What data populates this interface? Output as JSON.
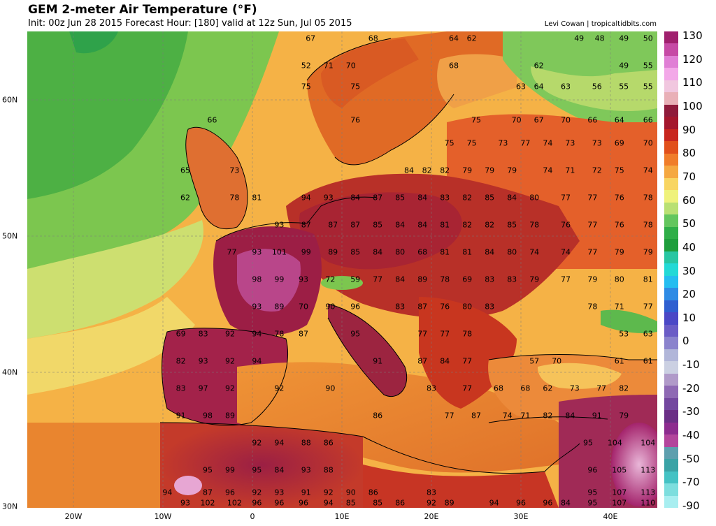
{
  "header": {
    "title": "GEM 2-meter Air Temperature (°F)",
    "subtitle": "Init: 00z Jun 28 2015   Forecast Hour: [180]   valid at 12z Sun, Jul 05 2015",
    "credit": "Levi Cowan | tropicaltidbits.com"
  },
  "axes": {
    "lat_labels": [
      "60N",
      "50N",
      "40N",
      "30N"
    ],
    "lon_labels": [
      "20W",
      "10W",
      "0",
      "10E",
      "20E",
      "30E",
      "40E"
    ]
  },
  "colorbar": {
    "labels": [
      "130",
      "120",
      "110",
      "100",
      "90",
      "80",
      "70",
      "60",
      "50",
      "40",
      "30",
      "20",
      "10",
      "0",
      "-10",
      "-20",
      "-30",
      "-40",
      "-50",
      "-70",
      "-90"
    ],
    "colors": [
      "#a0206e",
      "#c64aa5",
      "#e07fd5",
      "#f3a8e8",
      "#f1c7df",
      "#e9b0b7",
      "#8f1b3b",
      "#a4172d",
      "#c8261e",
      "#e1501b",
      "#f07d2a",
      "#f5a841",
      "#f8d562",
      "#eff27b",
      "#b9e073",
      "#63c65e",
      "#2fae48",
      "#1e9e3c",
      "#28c6a2",
      "#23d9d6",
      "#25bdf0",
      "#2e8be5",
      "#2f5fd0",
      "#4b48c6",
      "#6a5cc6",
      "#8a83cd",
      "#b1b6d9",
      "#cbd0e2",
      "#b09ac9",
      "#8e69b4",
      "#73479f",
      "#6b2f86",
      "#8d2c8f",
      "#b3459c",
      "#5d9fae",
      "#3aa3a6",
      "#44c2c4",
      "#7ddede",
      "#a8eef0"
    ]
  },
  "map_values": [
    {
      "v": "67",
      "lon": 6.5,
      "lat": 64.5
    },
    {
      "v": "68",
      "lon": 13.5,
      "lat": 64.5
    },
    {
      "v": "64",
      "lon": 22.5,
      "lat": 64.5
    },
    {
      "v": "62",
      "lon": 24.5,
      "lat": 64.5
    },
    {
      "v": "49",
      "lon": 36.5,
      "lat": 64.5
    },
    {
      "v": "48",
      "lon": 38.8,
      "lat": 64.5
    },
    {
      "v": "49",
      "lon": 41.5,
      "lat": 64.5
    },
    {
      "v": "50",
      "lon": 44.2,
      "lat": 64.5
    },
    {
      "v": "52",
      "lon": 6,
      "lat": 62.5
    },
    {
      "v": "71",
      "lon": 8.5,
      "lat": 62.5
    },
    {
      "v": "70",
      "lon": 11,
      "lat": 62.5
    },
    {
      "v": "68",
      "lon": 22.5,
      "lat": 62.5
    },
    {
      "v": "62",
      "lon": 32,
      "lat": 62.5
    },
    {
      "v": "49",
      "lon": 41.5,
      "lat": 62.5
    },
    {
      "v": "55",
      "lon": 44.2,
      "lat": 62.5
    },
    {
      "v": "75",
      "lon": 6,
      "lat": 61
    },
    {
      "v": "75",
      "lon": 11.5,
      "lat": 61
    },
    {
      "v": "63",
      "lon": 30,
      "lat": 61
    },
    {
      "v": "64",
      "lon": 32,
      "lat": 61
    },
    {
      "v": "63",
      "lon": 35,
      "lat": 61
    },
    {
      "v": "56",
      "lon": 38.5,
      "lat": 61
    },
    {
      "v": "55",
      "lon": 41.5,
      "lat": 61
    },
    {
      "v": "55",
      "lon": 44.2,
      "lat": 61
    },
    {
      "v": "66",
      "lon": -4.5,
      "lat": 58.5
    },
    {
      "v": "76",
      "lon": 11.5,
      "lat": 58.5
    },
    {
      "v": "75",
      "lon": 25,
      "lat": 58.5
    },
    {
      "v": "70",
      "lon": 29.5,
      "lat": 58.5
    },
    {
      "v": "67",
      "lon": 32,
      "lat": 58.5
    },
    {
      "v": "70",
      "lon": 35,
      "lat": 58.5
    },
    {
      "v": "66",
      "lon": 38,
      "lat": 58.5
    },
    {
      "v": "64",
      "lon": 41,
      "lat": 58.5
    },
    {
      "v": "66",
      "lon": 44.2,
      "lat": 58.5
    },
    {
      "v": "75",
      "lon": 22,
      "lat": 56.8
    },
    {
      "v": "75",
      "lon": 24.5,
      "lat": 56.8
    },
    {
      "v": "73",
      "lon": 28,
      "lat": 56.8
    },
    {
      "v": "77",
      "lon": 30.5,
      "lat": 56.8
    },
    {
      "v": "74",
      "lon": 33,
      "lat": 56.8
    },
    {
      "v": "73",
      "lon": 35.5,
      "lat": 56.8
    },
    {
      "v": "73",
      "lon": 38.5,
      "lat": 56.8
    },
    {
      "v": "69",
      "lon": 41,
      "lat": 56.8
    },
    {
      "v": "70",
      "lon": 44.2,
      "lat": 56.8
    },
    {
      "v": "65",
      "lon": -7.5,
      "lat": 54.8
    },
    {
      "v": "73",
      "lon": -2,
      "lat": 54.8
    },
    {
      "v": "84",
      "lon": 17.5,
      "lat": 54.8
    },
    {
      "v": "82",
      "lon": 19.5,
      "lat": 54.8
    },
    {
      "v": "82",
      "lon": 21.5,
      "lat": 54.8
    },
    {
      "v": "79",
      "lon": 24,
      "lat": 54.8
    },
    {
      "v": "79",
      "lon": 26.5,
      "lat": 54.8
    },
    {
      "v": "79",
      "lon": 29,
      "lat": 54.8
    },
    {
      "v": "74",
      "lon": 33,
      "lat": 54.8
    },
    {
      "v": "71",
      "lon": 35.5,
      "lat": 54.8
    },
    {
      "v": "72",
      "lon": 38.5,
      "lat": 54.8
    },
    {
      "v": "75",
      "lon": 41,
      "lat": 54.8
    },
    {
      "v": "74",
      "lon": 44.2,
      "lat": 54.8
    },
    {
      "v": "62",
      "lon": -7.5,
      "lat": 52.8
    },
    {
      "v": "78",
      "lon": -2,
      "lat": 52.8
    },
    {
      "v": "81",
      "lon": 0.5,
      "lat": 52.8
    },
    {
      "v": "94",
      "lon": 6,
      "lat": 52.8
    },
    {
      "v": "93",
      "lon": 8.5,
      "lat": 52.8
    },
    {
      "v": "84",
      "lon": 11.5,
      "lat": 52.8
    },
    {
      "v": "87",
      "lon": 14,
      "lat": 52.8
    },
    {
      "v": "85",
      "lon": 16.5,
      "lat": 52.8
    },
    {
      "v": "84",
      "lon": 19,
      "lat": 52.8
    },
    {
      "v": "83",
      "lon": 21.5,
      "lat": 52.8
    },
    {
      "v": "82",
      "lon": 24,
      "lat": 52.8
    },
    {
      "v": "85",
      "lon": 26.5,
      "lat": 52.8
    },
    {
      "v": "84",
      "lon": 29,
      "lat": 52.8
    },
    {
      "v": "80",
      "lon": 31.5,
      "lat": 52.8
    },
    {
      "v": "77",
      "lon": 35,
      "lat": 52.8
    },
    {
      "v": "77",
      "lon": 38,
      "lat": 52.8
    },
    {
      "v": "76",
      "lon": 41,
      "lat": 52.8
    },
    {
      "v": "78",
      "lon": 44.2,
      "lat": 52.8
    },
    {
      "v": "93",
      "lon": 3,
      "lat": 50.8
    },
    {
      "v": "87",
      "lon": 6,
      "lat": 50.8
    },
    {
      "v": "87",
      "lon": 9,
      "lat": 50.8
    },
    {
      "v": "87",
      "lon": 11.5,
      "lat": 50.8
    },
    {
      "v": "85",
      "lon": 14,
      "lat": 50.8
    },
    {
      "v": "84",
      "lon": 16.5,
      "lat": 50.8
    },
    {
      "v": "84",
      "lon": 19,
      "lat": 50.8
    },
    {
      "v": "81",
      "lon": 21.5,
      "lat": 50.8
    },
    {
      "v": "82",
      "lon": 24,
      "lat": 50.8
    },
    {
      "v": "82",
      "lon": 26.5,
      "lat": 50.8
    },
    {
      "v": "85",
      "lon": 29,
      "lat": 50.8
    },
    {
      "v": "78",
      "lon": 31.5,
      "lat": 50.8
    },
    {
      "v": "76",
      "lon": 35,
      "lat": 50.8
    },
    {
      "v": "77",
      "lon": 38,
      "lat": 50.8
    },
    {
      "v": "76",
      "lon": 41,
      "lat": 50.8
    },
    {
      "v": "78",
      "lon": 44.2,
      "lat": 50.8
    },
    {
      "v": "77",
      "lon": -2.3,
      "lat": 48.8
    },
    {
      "v": "93",
      "lon": 0.5,
      "lat": 48.8
    },
    {
      "v": "101",
      "lon": 3,
      "lat": 48.8
    },
    {
      "v": "99",
      "lon": 6,
      "lat": 48.8
    },
    {
      "v": "89",
      "lon": 9,
      "lat": 48.8
    },
    {
      "v": "85",
      "lon": 11.5,
      "lat": 48.8
    },
    {
      "v": "84",
      "lon": 14,
      "lat": 48.8
    },
    {
      "v": "80",
      "lon": 16.5,
      "lat": 48.8
    },
    {
      "v": "68",
      "lon": 19,
      "lat": 48.8
    },
    {
      "v": "81",
      "lon": 21.5,
      "lat": 48.8
    },
    {
      "v": "81",
      "lon": 24,
      "lat": 48.8
    },
    {
      "v": "84",
      "lon": 26.5,
      "lat": 48.8
    },
    {
      "v": "80",
      "lon": 29,
      "lat": 48.8
    },
    {
      "v": "74",
      "lon": 31.5,
      "lat": 48.8
    },
    {
      "v": "74",
      "lon": 35,
      "lat": 48.8
    },
    {
      "v": "77",
      "lon": 38,
      "lat": 48.8
    },
    {
      "v": "79",
      "lon": 41,
      "lat": 48.8
    },
    {
      "v": "79",
      "lon": 44.2,
      "lat": 48.8
    },
    {
      "v": "98",
      "lon": 0.5,
      "lat": 46.8
    },
    {
      "v": "99",
      "lon": 3,
      "lat": 46.8
    },
    {
      "v": "93",
      "lon": 5.7,
      "lat": 46.8
    },
    {
      "v": "72",
      "lon": 8.7,
      "lat": 46.8
    },
    {
      "v": "59",
      "lon": 11.5,
      "lat": 46.8
    },
    {
      "v": "77",
      "lon": 14,
      "lat": 46.8
    },
    {
      "v": "84",
      "lon": 16.5,
      "lat": 46.8
    },
    {
      "v": "89",
      "lon": 19,
      "lat": 46.8
    },
    {
      "v": "78",
      "lon": 21.5,
      "lat": 46.8
    },
    {
      "v": "69",
      "lon": 24,
      "lat": 46.8
    },
    {
      "v": "83",
      "lon": 26.5,
      "lat": 46.8
    },
    {
      "v": "83",
      "lon": 29,
      "lat": 46.8
    },
    {
      "v": "79",
      "lon": 31.5,
      "lat": 46.8
    },
    {
      "v": "77",
      "lon": 35,
      "lat": 46.8
    },
    {
      "v": "79",
      "lon": 38,
      "lat": 46.8
    },
    {
      "v": "80",
      "lon": 41,
      "lat": 46.8
    },
    {
      "v": "81",
      "lon": 44.2,
      "lat": 46.8
    },
    {
      "v": "93",
      "lon": 0.5,
      "lat": 44.8
    },
    {
      "v": "89",
      "lon": 3,
      "lat": 44.8
    },
    {
      "v": "70",
      "lon": 5.7,
      "lat": 44.8
    },
    {
      "v": "90",
      "lon": 8.7,
      "lat": 44.8
    },
    {
      "v": "96",
      "lon": 11.5,
      "lat": 44.8
    },
    {
      "v": "83",
      "lon": 16.5,
      "lat": 44.8
    },
    {
      "v": "87",
      "lon": 19,
      "lat": 44.8
    },
    {
      "v": "76",
      "lon": 21.5,
      "lat": 44.8
    },
    {
      "v": "80",
      "lon": 24,
      "lat": 44.8
    },
    {
      "v": "83",
      "lon": 26.5,
      "lat": 44.8
    },
    {
      "v": "78",
      "lon": 38,
      "lat": 44.8
    },
    {
      "v": "71",
      "lon": 41,
      "lat": 44.8
    },
    {
      "v": "77",
      "lon": 44.2,
      "lat": 44.8
    },
    {
      "v": "69",
      "lon": -8,
      "lat": 42.8
    },
    {
      "v": "83",
      "lon": -5.5,
      "lat": 42.8
    },
    {
      "v": "92",
      "lon": -2.5,
      "lat": 42.8
    },
    {
      "v": "94",
      "lon": 0.5,
      "lat": 42.8
    },
    {
      "v": "78",
      "lon": 3,
      "lat": 42.8
    },
    {
      "v": "87",
      "lon": 5.7,
      "lat": 42.8
    },
    {
      "v": "95",
      "lon": 11.5,
      "lat": 42.8
    },
    {
      "v": "77",
      "lon": 19,
      "lat": 42.8
    },
    {
      "v": "77",
      "lon": 21.5,
      "lat": 42.8
    },
    {
      "v": "78",
      "lon": 24,
      "lat": 42.8
    },
    {
      "v": "53",
      "lon": 41.5,
      "lat": 42.8
    },
    {
      "v": "63",
      "lon": 44.2,
      "lat": 42.8
    },
    {
      "v": "82",
      "lon": -8,
      "lat": 40.8
    },
    {
      "v": "93",
      "lon": -5.5,
      "lat": 40.8
    },
    {
      "v": "92",
      "lon": -2.5,
      "lat": 40.8
    },
    {
      "v": "94",
      "lon": 0.5,
      "lat": 40.8
    },
    {
      "v": "91",
      "lon": 14,
      "lat": 40.8
    },
    {
      "v": "87",
      "lon": 19,
      "lat": 40.8
    },
    {
      "v": "84",
      "lon": 21.5,
      "lat": 40.8
    },
    {
      "v": "77",
      "lon": 24,
      "lat": 40.8
    },
    {
      "v": "57",
      "lon": 31.5,
      "lat": 40.8
    },
    {
      "v": "70",
      "lon": 34,
      "lat": 40.8
    },
    {
      "v": "61",
      "lon": 41,
      "lat": 40.8
    },
    {
      "v": "61",
      "lon": 44.2,
      "lat": 40.8
    },
    {
      "v": "83",
      "lon": -8,
      "lat": 38.8
    },
    {
      "v": "97",
      "lon": -5.5,
      "lat": 38.8
    },
    {
      "v": "92",
      "lon": -2.5,
      "lat": 38.8
    },
    {
      "v": "92",
      "lon": 3,
      "lat": 38.8
    },
    {
      "v": "90",
      "lon": 8.7,
      "lat": 38.8
    },
    {
      "v": "83",
      "lon": 20,
      "lat": 38.8
    },
    {
      "v": "77",
      "lon": 24,
      "lat": 38.8
    },
    {
      "v": "68",
      "lon": 27.5,
      "lat": 38.8
    },
    {
      "v": "68",
      "lon": 30.5,
      "lat": 38.8
    },
    {
      "v": "62",
      "lon": 33,
      "lat": 38.8
    },
    {
      "v": "73",
      "lon": 36,
      "lat": 38.8
    },
    {
      "v": "77",
      "lon": 39,
      "lat": 38.8
    },
    {
      "v": "82",
      "lon": 41.5,
      "lat": 38.8
    },
    {
      "v": "91",
      "lon": -8,
      "lat": 36.8
    },
    {
      "v": "98",
      "lon": -5,
      "lat": 36.8
    },
    {
      "v": "89",
      "lon": -2.5,
      "lat": 36.8
    },
    {
      "v": "86",
      "lon": 14,
      "lat": 36.8
    },
    {
      "v": "77",
      "lon": 22,
      "lat": 36.8
    },
    {
      "v": "87",
      "lon": 25,
      "lat": 36.8
    },
    {
      "v": "74",
      "lon": 28.5,
      "lat": 36.8
    },
    {
      "v": "71",
      "lon": 30.5,
      "lat": 36.8
    },
    {
      "v": "82",
      "lon": 33,
      "lat": 36.8
    },
    {
      "v": "84",
      "lon": 35.5,
      "lat": 36.8
    },
    {
      "v": "91",
      "lon": 38.5,
      "lat": 36.8
    },
    {
      "v": "79",
      "lon": 41.5,
      "lat": 36.8
    },
    {
      "v": "92",
      "lon": 0.5,
      "lat": 34.8
    },
    {
      "v": "94",
      "lon": 3,
      "lat": 34.8
    },
    {
      "v": "88",
      "lon": 6,
      "lat": 34.8
    },
    {
      "v": "86",
      "lon": 8.5,
      "lat": 34.8
    },
    {
      "v": "95",
      "lon": 37.5,
      "lat": 34.8
    },
    {
      "v": "104",
      "lon": 40.5,
      "lat": 34.8
    },
    {
      "v": "104",
      "lon": 44.2,
      "lat": 34.8
    },
    {
      "v": "95",
      "lon": -5,
      "lat": 32.8
    },
    {
      "v": "99",
      "lon": -2.5,
      "lat": 32.8
    },
    {
      "v": "95",
      "lon": 0.5,
      "lat": 32.8
    },
    {
      "v": "84",
      "lon": 3,
      "lat": 32.8
    },
    {
      "v": "93",
      "lon": 6,
      "lat": 32.8
    },
    {
      "v": "88",
      "lon": 8.5,
      "lat": 32.8
    },
    {
      "v": "96",
      "lon": 38,
      "lat": 32.8
    },
    {
      "v": "105",
      "lon": 41,
      "lat": 32.8
    },
    {
      "v": "113",
      "lon": 44.2,
      "lat": 32.8
    },
    {
      "v": "94",
      "lon": -9.5,
      "lat": 31.2
    },
    {
      "v": "87",
      "lon": -5,
      "lat": 31.2
    },
    {
      "v": "96",
      "lon": -2.5,
      "lat": 31.2
    },
    {
      "v": "92",
      "lon": 0.5,
      "lat": 31.2
    },
    {
      "v": "93",
      "lon": 3,
      "lat": 31.2
    },
    {
      "v": "91",
      "lon": 6,
      "lat": 31.2
    },
    {
      "v": "92",
      "lon": 8.5,
      "lat": 31.2
    },
    {
      "v": "90",
      "lon": 11,
      "lat": 31.2
    },
    {
      "v": "86",
      "lon": 13.5,
      "lat": 31.2
    },
    {
      "v": "83",
      "lon": 20,
      "lat": 31.2
    },
    {
      "v": "95",
      "lon": 38,
      "lat": 31.2
    },
    {
      "v": "107",
      "lon": 41,
      "lat": 31.2
    },
    {
      "v": "113",
      "lon": 44.2,
      "lat": 31.2
    },
    {
      "v": "93",
      "lon": -7.5,
      "lat": 30.4
    },
    {
      "v": "102",
      "lon": -5,
      "lat": 30.4
    },
    {
      "v": "102",
      "lon": -2,
      "lat": 30.4
    },
    {
      "v": "96",
      "lon": 0.5,
      "lat": 30.4
    },
    {
      "v": "96",
      "lon": 3,
      "lat": 30.4
    },
    {
      "v": "96",
      "lon": 5.7,
      "lat": 30.4
    },
    {
      "v": "94",
      "lon": 8.5,
      "lat": 30.4
    },
    {
      "v": "85",
      "lon": 11,
      "lat": 30.4
    },
    {
      "v": "85",
      "lon": 14,
      "lat": 30.4
    },
    {
      "v": "86",
      "lon": 16.5,
      "lat": 30.4
    },
    {
      "v": "92",
      "lon": 20,
      "lat": 30.4
    },
    {
      "v": "89",
      "lon": 22,
      "lat": 30.4
    },
    {
      "v": "94",
      "lon": 27,
      "lat": 30.4
    },
    {
      "v": "96",
      "lon": 30,
      "lat": 30.4
    },
    {
      "v": "96",
      "lon": 33,
      "lat": 30.4
    },
    {
      "v": "84",
      "lon": 35,
      "lat": 30.4
    },
    {
      "v": "95",
      "lon": 38,
      "lat": 30.4
    },
    {
      "v": "107",
      "lon": 41,
      "lat": 30.4
    },
    {
      "v": "110",
      "lon": 44.2,
      "lat": 30.4
    }
  ]
}
